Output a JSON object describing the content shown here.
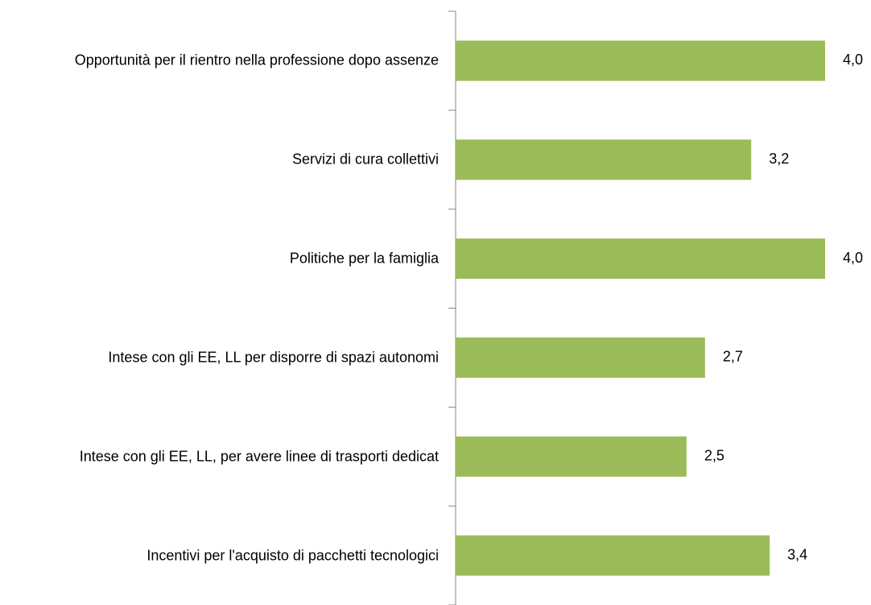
{
  "chart_data": {
    "type": "bar",
    "orientation": "horizontal",
    "categories": [
      "Opportunità per il rientro nella professione dopo assenze",
      "Servizi di cura collettivi",
      "Politiche per la famiglia",
      "Intese con gli EE,  LL per disporre di spazi autonomi",
      "Intese con gli EE,  LL, per avere linee di trasporti dedicat",
      "Incentivi per l'acquisto di pacchetti tecnologici"
    ],
    "values": [
      4.0,
      3.2,
      4.0,
      2.7,
      2.5,
      3.4
    ],
    "value_labels": [
      "4,0",
      "3,2",
      "4,0",
      "2,7",
      "2,5",
      "3,4"
    ],
    "color": "#9bbb59",
    "xlim": [
      0,
      4.0
    ]
  }
}
